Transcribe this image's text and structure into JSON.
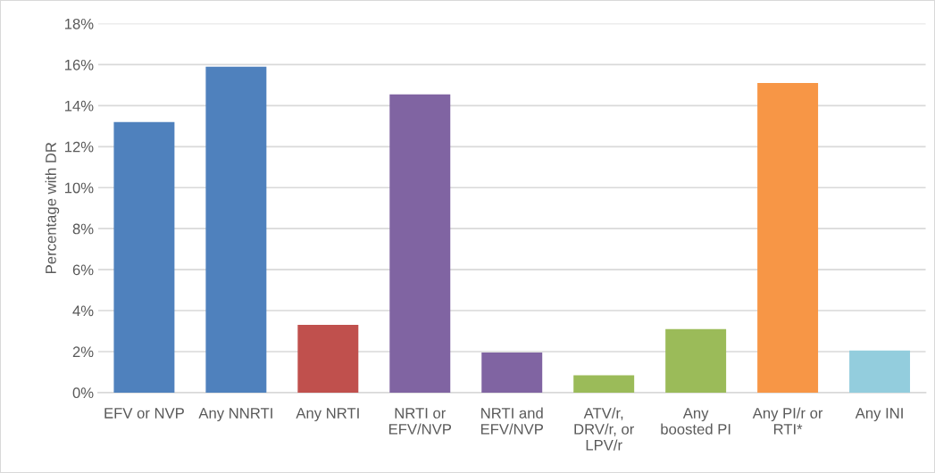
{
  "chart_data": {
    "type": "bar",
    "ylabel": "Percentage with DR",
    "categories": [
      "EFV or NVP",
      "Any NNRTI",
      "Any NRTI",
      "NRTI or\nEFV/NVP",
      "NRTI and\nEFV/NVP",
      "ATV/r,\nDRV/r, or\nLPV/r",
      "Any\nboosted PI",
      "Any PI/r or\nRTI*",
      "Any INI"
    ],
    "values": [
      13.2,
      15.9,
      3.3,
      14.55,
      1.95,
      0.85,
      3.1,
      15.1,
      2.05
    ],
    "colors": [
      "#4f81bd",
      "#4f81bd",
      "#c0504d",
      "#8064a2",
      "#8064a2",
      "#9bbb59",
      "#9bbb59",
      "#f79646",
      "#93cddd"
    ],
    "ylim": [
      0,
      18
    ],
    "yticks": [
      {
        "value": 0,
        "label": "0%"
      },
      {
        "value": 2,
        "label": "2%"
      },
      {
        "value": 4,
        "label": "4%"
      },
      {
        "value": 6,
        "label": "6%"
      },
      {
        "value": 8,
        "label": "8%"
      },
      {
        "value": 10,
        "label": "10%"
      },
      {
        "value": 12,
        "label": "12%"
      },
      {
        "value": 14,
        "label": "14%"
      },
      {
        "value": 16,
        "label": "16%"
      },
      {
        "value": 18,
        "label": "18%"
      }
    ],
    "grid": "y"
  }
}
